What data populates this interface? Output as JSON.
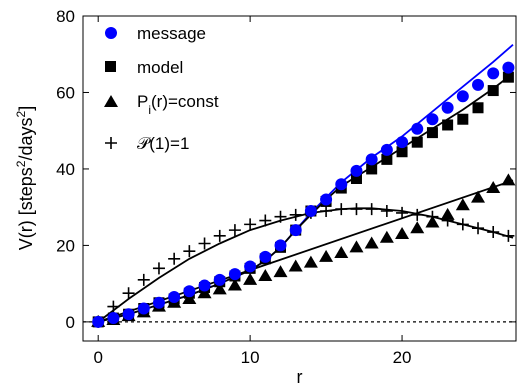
{
  "chart_data": {
    "type": "scatter",
    "xlabel": "r",
    "ylabel": "V(r) [steps²/days²]",
    "xlim": [
      -1,
      27.5
    ],
    "ylim": [
      -5,
      80
    ],
    "xticks": [
      0,
      10,
      20
    ],
    "yticks": [
      0,
      20,
      40,
      60,
      80
    ],
    "legend_position": "top-left",
    "series": [
      {
        "name": "message",
        "marker": "circle",
        "color": "#0000ff",
        "x": [
          0,
          1,
          2,
          3,
          4,
          5,
          6,
          7,
          8,
          9,
          10,
          11,
          12,
          13,
          14,
          15,
          16,
          17,
          18,
          19,
          20,
          21,
          22,
          23,
          24,
          25,
          26,
          27
        ],
        "y": [
          0,
          1,
          2,
          3.5,
          5,
          6.5,
          8,
          9.5,
          11,
          12.5,
          14.5,
          17,
          20,
          24,
          29,
          32,
          36,
          39.5,
          42.5,
          45,
          47,
          50.5,
          53,
          56,
          59,
          62,
          65,
          66.5
        ]
      },
      {
        "name": "model",
        "marker": "square",
        "color": "#000000",
        "x": [
          0,
          1,
          2,
          3,
          4,
          5,
          6,
          7,
          8,
          9,
          10,
          11,
          12,
          13,
          14,
          15,
          16,
          17,
          18,
          19,
          20,
          21,
          22,
          23,
          24,
          25,
          26,
          27
        ],
        "y": [
          0,
          1,
          2,
          3.5,
          5,
          6,
          7.5,
          9,
          10.5,
          12,
          14,
          16.5,
          19.5,
          24,
          29,
          31.5,
          35,
          37.5,
          40,
          42.5,
          44.5,
          47,
          49.5,
          51.5,
          53,
          56,
          60.5,
          64
        ]
      },
      {
        "name": "P_i(r)=const",
        "marker": "triangle",
        "color": "#000000",
        "x": [
          0,
          1,
          2,
          3,
          4,
          5,
          6,
          7,
          8,
          9,
          10,
          11,
          12,
          13,
          14,
          15,
          16,
          17,
          18,
          19,
          20,
          21,
          22,
          23,
          24,
          25,
          26,
          27
        ],
        "y": [
          0,
          0.5,
          1.5,
          2.5,
          4,
          5,
          6,
          7.5,
          8.5,
          9.5,
          11,
          12,
          13,
          14.5,
          15.5,
          17,
          18,
          19.5,
          20.5,
          22,
          23,
          24.5,
          26,
          28,
          30.5,
          32.5,
          35,
          37
        ]
      },
      {
        "name": "𝒫(1)=1",
        "marker": "plus",
        "color": "#000000",
        "x": [
          0,
          1,
          2,
          3,
          4,
          5,
          6,
          7,
          8,
          9,
          10,
          11,
          12,
          13,
          14,
          15,
          16,
          17,
          18,
          19,
          20,
          21,
          22,
          23,
          24,
          25,
          26,
          27
        ],
        "y": [
          0,
          4,
          7.5,
          11,
          14,
          16.5,
          18.5,
          20.5,
          22.5,
          24,
          25.5,
          26.5,
          27.5,
          28,
          28.5,
          29,
          29.5,
          29.5,
          29.5,
          29,
          28.5,
          28,
          27.5,
          26.5,
          25.5,
          24.5,
          23.5,
          22.5
        ]
      }
    ],
    "lines": [
      {
        "name": "message-fit",
        "color": "#0000ff",
        "x": [
          0,
          2,
          4,
          6,
          8,
          10,
          11,
          12,
          13,
          14,
          15,
          16,
          18,
          20,
          22,
          24,
          26,
          27.3
        ],
        "y": [
          0,
          2,
          4.5,
          7,
          10,
          13.5,
          16,
          19.5,
          24,
          28.5,
          32.5,
          36.5,
          43,
          48.5,
          55,
          61.5,
          68,
          72.5
        ]
      },
      {
        "name": "model-fit",
        "color": "#000000",
        "x": [
          0,
          2,
          4,
          6,
          8,
          10,
          11,
          12,
          13,
          14,
          15,
          16,
          18,
          20,
          22,
          24,
          26,
          27.3
        ],
        "y": [
          0,
          2,
          4.5,
          7,
          10,
          13.5,
          16,
          19.5,
          24,
          28,
          32,
          35.5,
          40.5,
          45.5,
          50.5,
          55.5,
          61,
          65
        ]
      },
      {
        "name": "triangle-fit",
        "color": "#000000",
        "x": [
          0,
          27.3
        ],
        "y": [
          0,
          37
        ]
      },
      {
        "name": "plus-fit",
        "color": "#000000",
        "x": [
          0,
          2,
          4,
          6,
          8,
          10,
          12,
          14,
          16,
          17,
          18,
          20,
          22,
          24,
          26,
          27.3
        ],
        "y": [
          0,
          6,
          11.5,
          16.5,
          20.5,
          24,
          26.5,
          28.5,
          29.5,
          29.7,
          29.7,
          29,
          27.5,
          25.5,
          23.5,
          22
        ]
      }
    ],
    "reference_line": {
      "y": 0,
      "style": "dashed"
    }
  }
}
